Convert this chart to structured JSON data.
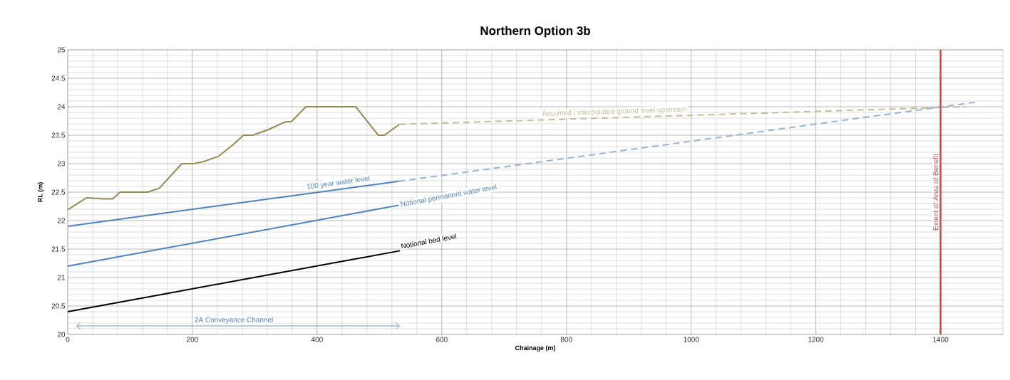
{
  "chart_data": {
    "type": "line",
    "title": "Northern Option 3b",
    "xlabel": "Chainage (m)",
    "ylabel": "RL (m)",
    "xlim": [
      0,
      1500
    ],
    "ylim": [
      20,
      25
    ],
    "xticks": [
      0,
      200,
      400,
      600,
      800,
      1000,
      1200,
      1400
    ],
    "yticks": [
      20,
      20.5,
      21,
      21.5,
      22,
      22.5,
      23,
      23.5,
      24,
      24.5,
      25
    ],
    "grid": true,
    "marker": "none",
    "series": [
      {
        "color": "#948a54",
        "line_style": "solid",
        "x": [
          0,
          30,
          57,
          72,
          84,
          128,
          147,
          183,
          202,
          219,
          242,
          265,
          282,
          297,
          322,
          348,
          359,
          382,
          462,
          498,
          508,
          532
        ],
        "values": [
          22.19,
          22.4,
          22.38,
          22.38,
          22.5,
          22.5,
          22.57,
          23.0,
          23.0,
          23.04,
          23.13,
          23.33,
          23.5,
          23.5,
          23.6,
          23.73,
          23.74,
          24.0,
          24.0,
          23.5,
          23.5,
          23.69
        ]
      },
      {
        "name": "Assumed / interpolated ground level upstream",
        "color": "#c4bd97",
        "line_style": "dashed",
        "x": [
          532,
          1440
        ],
        "values": [
          23.69,
          24.0
        ]
      },
      {
        "name": "100 year water level",
        "color": "#4f81bd",
        "line_style": "solid",
        "x": [
          0,
          531
        ],
        "values": [
          21.9,
          22.69
        ]
      },
      {
        "color": "#95b3d7",
        "line_style": "dashed",
        "x": [
          531,
          1456
        ],
        "values": [
          22.69,
          24.08
        ]
      },
      {
        "name": "Notional permanent water level",
        "color": "#4f81bd",
        "line_style": "solid",
        "x": [
          0,
          531
        ],
        "values": [
          21.2,
          22.27
        ]
      },
      {
        "name": "Notional bed level",
        "color": "#000000",
        "line_style": "solid",
        "x": [
          0,
          533
        ],
        "values": [
          20.4,
          21.47
        ]
      }
    ],
    "ref_lines": [
      {
        "axis": "x",
        "value": 1400,
        "label": "Extent of Area of Benefit",
        "color": "#c0504d"
      }
    ],
    "annotations": [
      "2A Conveyance Channel"
    ]
  }
}
